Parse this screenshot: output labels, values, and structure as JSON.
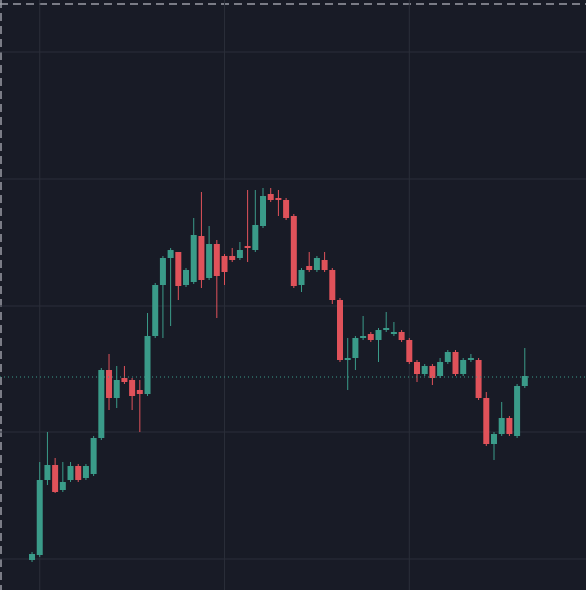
{
  "chart_data": {
    "type": "candlestick",
    "up_color": "#3a9b89",
    "down_color": "#e0525a",
    "grid": true,
    "grid_color": "#2a2e39",
    "price_line": 213,
    "price_line_color": "#3a9b89",
    "xlim": [
      -4.16,
      71.95
    ],
    "xticks": [
      1,
      25,
      49
    ],
    "ylim": [
      0,
      590
    ],
    "yticks": [
      31,
      158,
      284,
      411,
      538
    ],
    "series": [
      {
        "open": [
          30,
          35,
          110,
          125,
          100,
          110,
          124,
          112,
          116,
          152,
          220,
          192,
          212,
          210,
          200,
          196,
          254,
          305,
          332,
          338,
          305,
          308,
          354,
          312,
          346,
          334,
          334,
          332,
          344,
          340,
          364,
          396,
          392,
          390,
          374,
          305,
          324,
          320,
          330,
          320,
          290,
          230,
          232,
          252,
          256,
          250,
          260,
          256,
          258,
          250,
          228,
          216,
          224,
          214,
          228,
          238,
          216,
          230,
          230,
          192,
          146,
          156,
          172,
          154,
          204
        ],
        "high": [
          38,
          128,
          158,
          132,
          128,
          128,
          126,
          126,
          154,
          222,
          236,
          224,
          224,
          212,
          210,
          277,
          307,
          334,
          342,
          338,
          322,
          372,
          398,
          364,
          350,
          336,
          342,
          348,
          400,
          400,
          402,
          402,
          400,
          392,
          376,
          322,
          338,
          334,
          338,
          322,
          292,
          252,
          254,
          274,
          258,
          262,
          278,
          268,
          260,
          252,
          230,
          226,
          226,
          232,
          240,
          240,
          232,
          236,
          232,
          198,
          158,
          188,
          174,
          206,
          242
        ],
        "low": [
          28,
          33,
          105,
          97,
          98,
          108,
          108,
          110,
          114,
          150,
          180,
          182,
          206,
          180,
          158,
          194,
          252,
          252,
          264,
          290,
          303,
          306,
          302,
          310,
          272,
          305,
          328,
          330,
          328,
          338,
          362,
          388,
          374,
          370,
          302,
          298,
          318,
          318,
          318,
          286,
          228,
          200,
          220,
          250,
          248,
          228,
          258,
          254,
          248,
          226,
          208,
          214,
          205,
          212,
          226,
          214,
          214,
          228,
          190,
          144,
          130,
          154,
          154,
          152,
          202
        ],
        "close": [
          36,
          110,
          125,
          98,
          108,
          124,
          110,
          124,
          152,
          220,
          192,
          210,
          208,
          194,
          196,
          254,
          305,
          332,
          340,
          304,
          320,
          355,
          310,
          346,
          314,
          318,
          330,
          340,
          342,
          365,
          394,
          390,
          390,
          372,
          304,
          320,
          320,
          332,
          320,
          290,
          230,
          232,
          252,
          254,
          250,
          260,
          262,
          258,
          250,
          228,
          216,
          224,
          212,
          228,
          238,
          216,
          230,
          232,
          192,
          146,
          156,
          172,
          156,
          204,
          214
        ]
      }
    ]
  }
}
